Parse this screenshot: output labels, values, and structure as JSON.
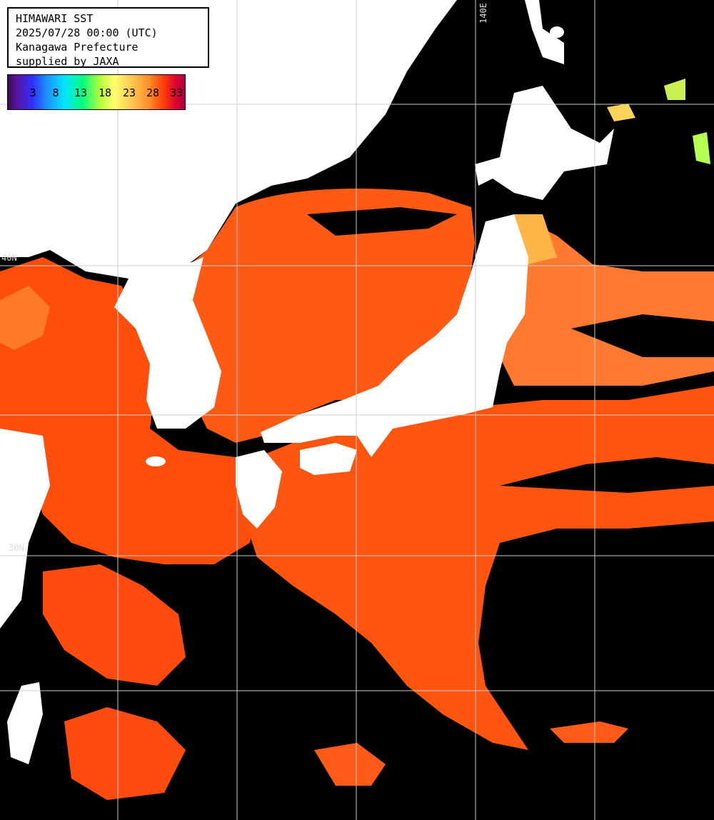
{
  "title_box": {
    "line1": "HIMAWARI SST",
    "line2": "2025/07/28 00:00 (UTC)",
    "line3": "Kanagawa Prefecture",
    "line4": "supplied by JAXA"
  },
  "legend": {
    "ticks": [
      "3",
      "8",
      "13",
      "18",
      "23",
      "28",
      "33"
    ],
    "colors": {
      "sea_warm": "#ff5a0a",
      "sea_hot": "#f03c00",
      "land": "#ffffff",
      "cloud": "#000000",
      "grid": "#cccccc"
    }
  },
  "grid_labels": {
    "lon_140e": "140E",
    "lat_40n": "40N",
    "lat_30n": "30N"
  }
}
